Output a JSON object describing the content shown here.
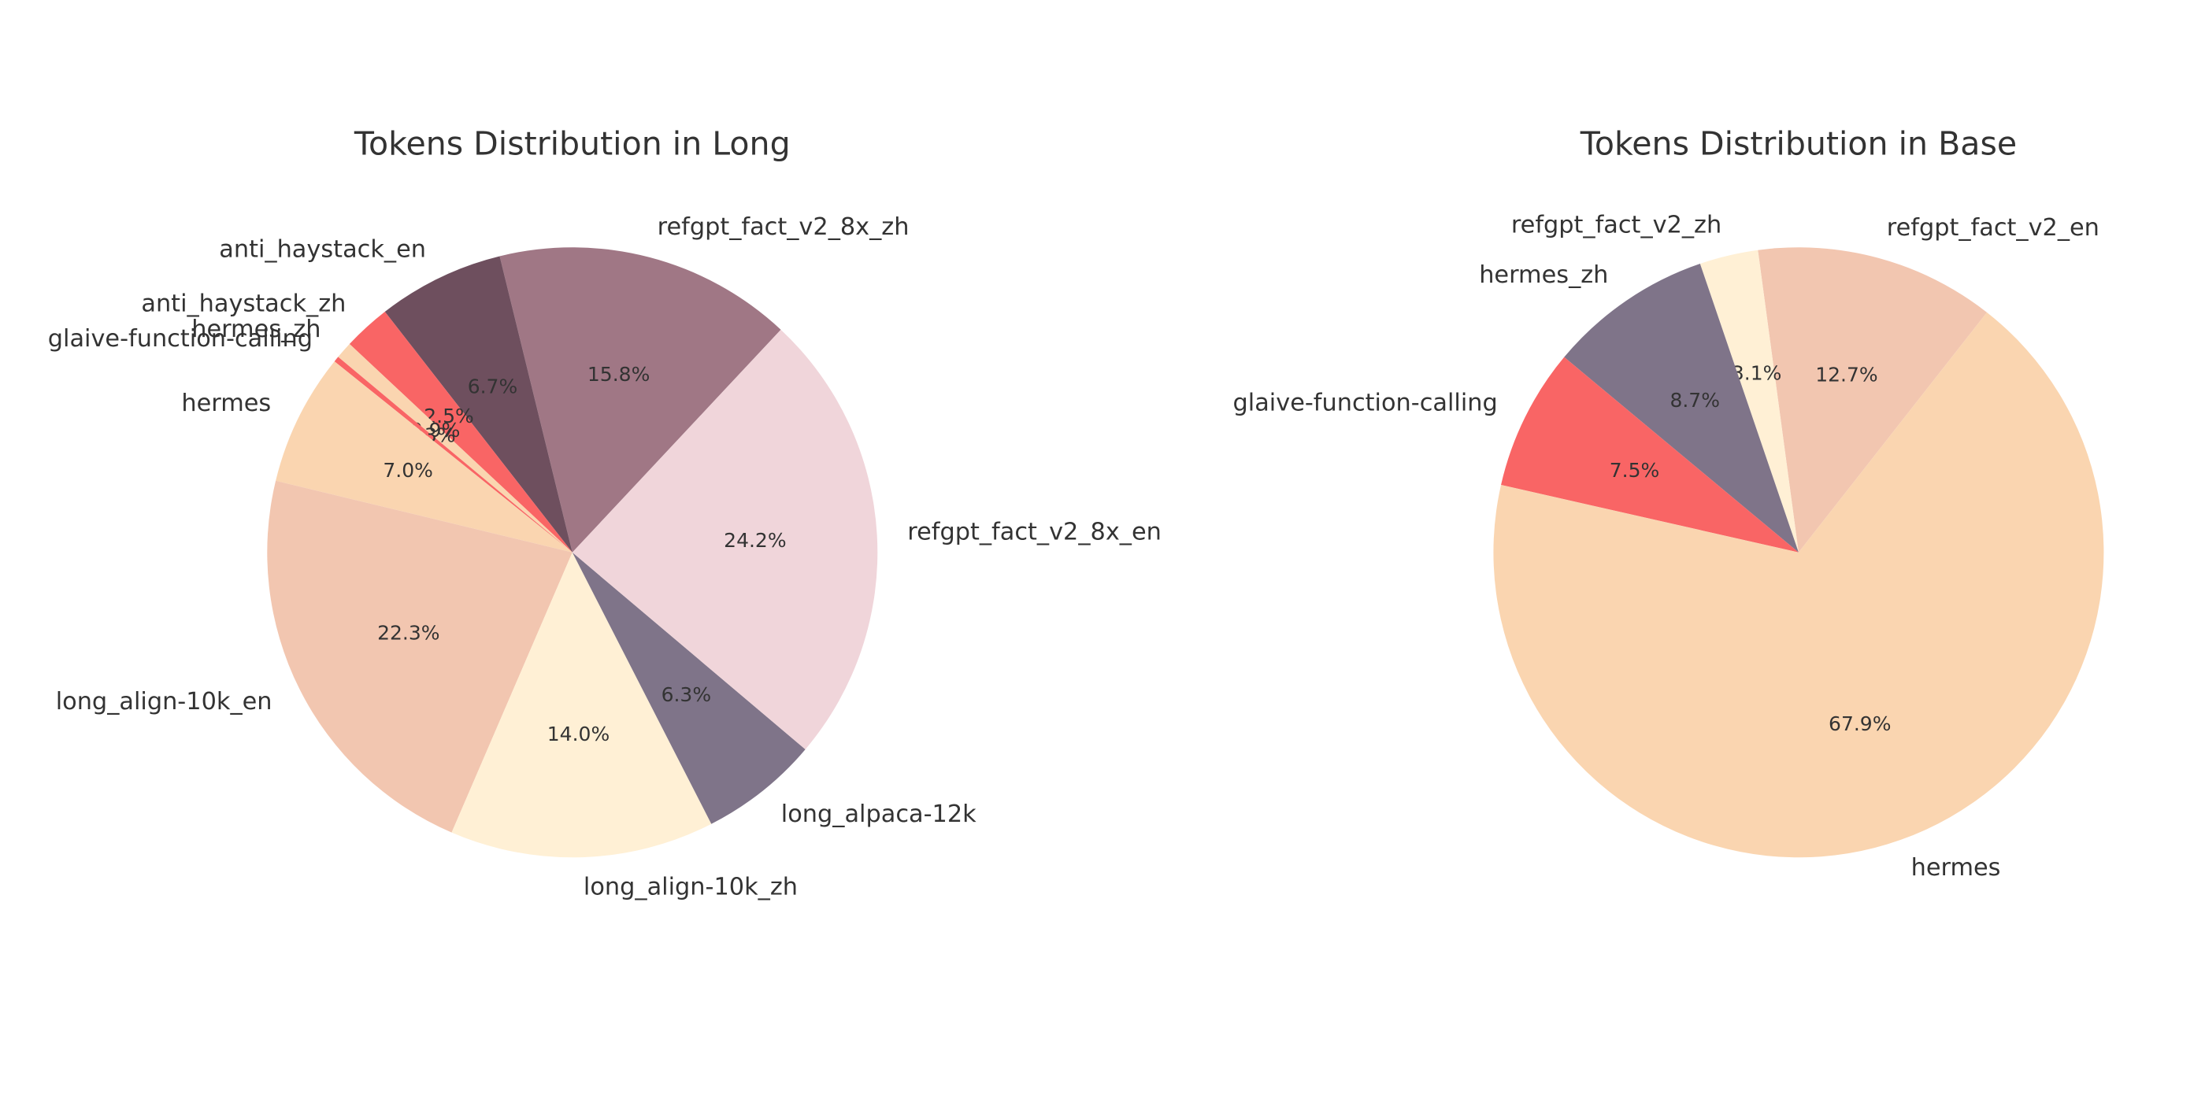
{
  "chart_data": [
    {
      "type": "pie",
      "title": "Tokens Distribution in Long",
      "categories": [
        "refgpt_fact_v2_8x_zh",
        "anti_haystack_en",
        "anti_haystack_zh",
        "hermes_zh",
        "glaive-function-calling",
        "hermes",
        "long_align-10k_en",
        "long_align-10k_zh",
        "long_alpaca-12k",
        "refgpt_fact_v2_8x_en"
      ],
      "values": [
        15.8,
        6.7,
        2.5,
        0.9,
        0.3,
        7.0,
        22.3,
        14.0,
        6.3,
        24.2
      ],
      "value_labels": [
        "15.8%",
        "6.7%",
        "2.5%",
        "0.9%",
        "0.3%",
        "7.0%",
        "22.3%",
        "14.0%",
        "6.3%",
        "24.2%"
      ],
      "colors": [
        "#a07785",
        "#6e4f5e",
        "#f96565",
        "#fad5b0",
        "#f96565",
        "#fad5b0",
        "#f2c6b0",
        "#fff0d5",
        "#7f7489",
        "#f0d5da"
      ]
    },
    {
      "type": "pie",
      "title": "Tokens Distribution in Base",
      "categories": [
        "refgpt_fact_v2_en",
        "refgpt_fact_v2_zh",
        "hermes_zh",
        "glaive-function-calling",
        "hermes"
      ],
      "values": [
        12.7,
        3.1,
        8.7,
        7.5,
        67.9
      ],
      "value_labels": [
        "12.7%",
        "3.1%",
        "8.7%",
        "7.5%",
        "67.9%"
      ],
      "colors": [
        "#f2c6b0",
        "#fff0d5",
        "#7f7489",
        "#f96565",
        "#fad5b0"
      ]
    }
  ]
}
